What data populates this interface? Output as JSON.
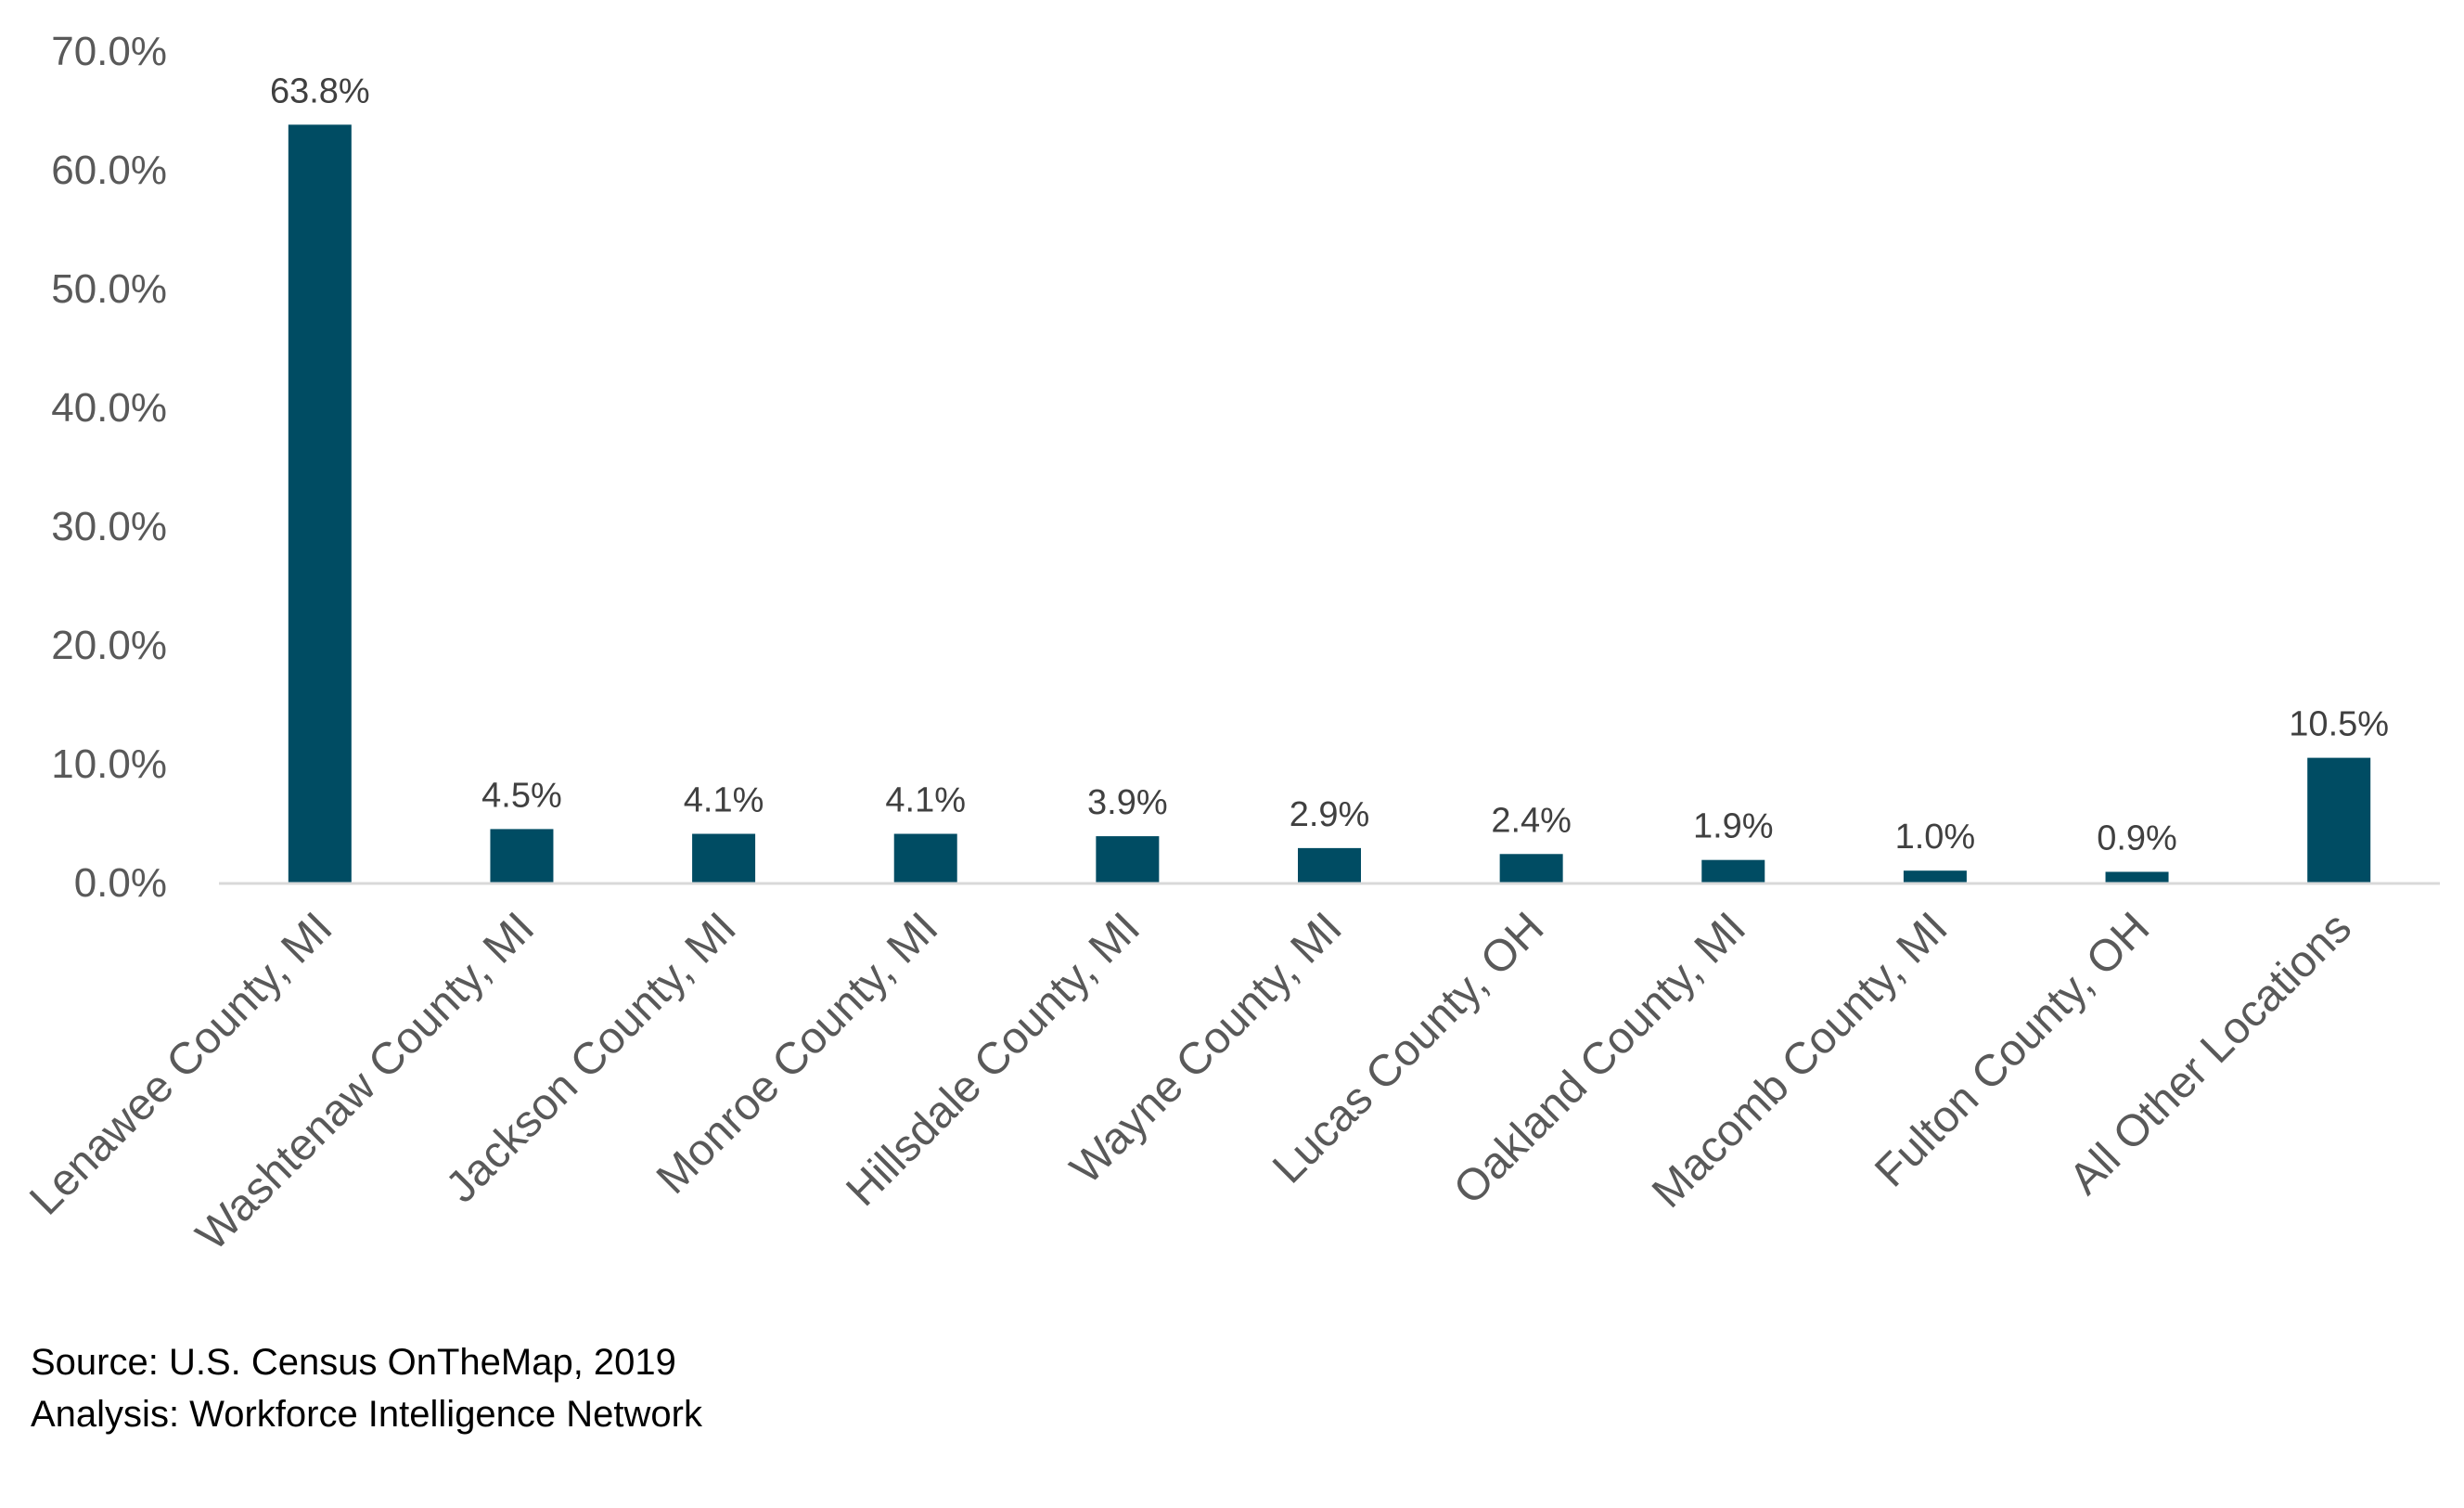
{
  "chart_data": {
    "type": "bar",
    "title": "",
    "xlabel": "",
    "ylabel": "",
    "categories": [
      "Lenawee County, MI",
      "Washtenaw County, MI",
      "Jackson County, MI",
      "Monroe County, MI",
      "Hillsdale County, MI",
      "Wayne County, MI",
      "Lucas County, OH",
      "Oakland County, MI",
      "Macomb County, MI",
      "Fulton County, OH",
      "All Other Locations"
    ],
    "values": [
      63.8,
      4.5,
      4.1,
      4.1,
      3.9,
      2.9,
      2.4,
      1.9,
      1.0,
      0.9,
      10.5
    ],
    "data_labels": [
      "63.8%",
      "4.5%",
      "4.1%",
      "4.1%",
      "3.9%",
      "2.9%",
      "2.4%",
      "1.9%",
      "1.0%",
      "0.9%",
      "10.5%"
    ],
    "ylim": [
      0,
      70
    ],
    "y_ticks": [
      0,
      10,
      20,
      30,
      40,
      50,
      60,
      70
    ],
    "y_tick_labels": [
      "0.0%",
      "10.0%",
      "20.0%",
      "30.0%",
      "40.0%",
      "50.0%",
      "60.0%",
      "70.0%"
    ],
    "grid": false,
    "legend": "none",
    "bar_color": "#004C63",
    "axis_color": "#D9D9D9"
  },
  "source": {
    "line1": "Source: U.S. Census OnTheMap, 2019",
    "line2": "Analysis: Workforce Intelligence Network"
  }
}
